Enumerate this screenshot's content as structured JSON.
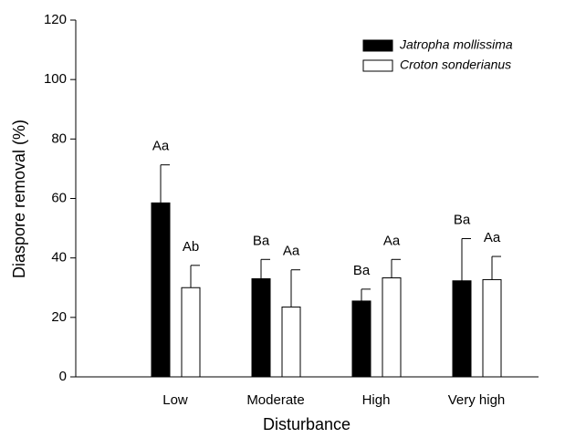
{
  "chart_data": {
    "type": "bar",
    "x_label": "Disturbance",
    "y_label": "Diaspore removal (%)",
    "categories": [
      "Low",
      "Moderate",
      "High",
      "Very high"
    ],
    "ylim": [
      0,
      120
    ],
    "yticks": [
      0,
      20,
      40,
      60,
      80,
      100,
      120
    ],
    "legend": "top-right",
    "series": [
      {
        "name": "Jatropha mollissima",
        "color": "#000000",
        "values": [
          58.5,
          33,
          25.5,
          32.3
        ],
        "errors": [
          12.8,
          6.5,
          4,
          14.2
        ],
        "labels": [
          "Aa",
          "Ba",
          "Ba",
          "Ba"
        ]
      },
      {
        "name": "Croton sonderianus",
        "color": "#ffffff",
        "values": [
          30,
          23.5,
          33.3,
          32.7
        ],
        "errors": [
          7.5,
          12.5,
          6.2,
          7.8
        ],
        "labels": [
          "Ab",
          "Aa",
          "Aa",
          "Aa"
        ]
      }
    ]
  }
}
